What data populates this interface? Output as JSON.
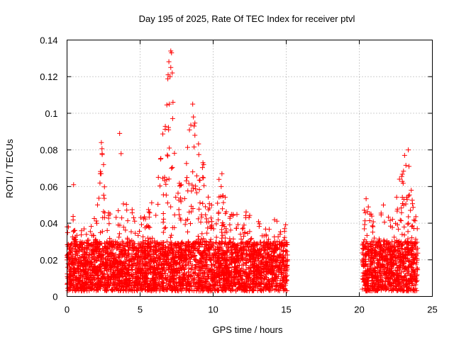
{
  "colors": {
    "series": "#ff0000",
    "grid": "#a0a0a0",
    "axis": "#000000",
    "background": "#ffffff"
  },
  "chart_data": {
    "type": "scatter",
    "marker": "plus",
    "title": "Day 195 of 2025, Rate Of TEC Index for receiver ptvl",
    "xlabel": "GPS time / hours",
    "ylabel": "ROTI / TECUs",
    "xlim": [
      0,
      25
    ],
    "ylim": [
      0,
      0.14
    ],
    "xticks": [
      0,
      5,
      10,
      15,
      20,
      25
    ],
    "yticks": [
      0,
      0.02,
      0.04,
      0.06,
      0.08,
      0.1,
      0.12,
      0.14
    ],
    "xtick_labels": [
      "0",
      "5",
      "10",
      "15",
      "20",
      "25"
    ],
    "ytick_labels": [
      "0",
      "0.02",
      "0.04",
      "0.06",
      "0.08",
      "0.1",
      "0.12",
      "0.14"
    ],
    "grid": true,
    "series": [
      {
        "name": "ROTI",
        "color": "#ff0000",
        "segments": [
          [
            0.0,
            15.1
          ],
          [
            20.2,
            24.0
          ]
        ],
        "baseline_range": [
          0.003,
          0.03
        ],
        "envelope": [
          [
            0.0,
            0.038
          ],
          [
            0.5,
            0.045
          ],
          [
            1.0,
            0.042
          ],
          [
            1.5,
            0.038
          ],
          [
            2.0,
            0.045
          ],
          [
            2.4,
            0.083
          ],
          [
            2.8,
            0.046
          ],
          [
            3.5,
            0.048
          ],
          [
            4.2,
            0.053
          ],
          [
            5.0,
            0.045
          ],
          [
            5.5,
            0.05
          ],
          [
            6.2,
            0.06
          ],
          [
            7.0,
            0.134
          ],
          [
            7.5,
            0.06
          ],
          [
            8.0,
            0.07
          ],
          [
            8.6,
            0.105
          ],
          [
            9.2,
            0.075
          ],
          [
            9.8,
            0.05
          ],
          [
            10.5,
            0.067
          ],
          [
            11.0,
            0.048
          ],
          [
            12.0,
            0.045
          ],
          [
            12.8,
            0.05
          ],
          [
            13.5,
            0.036
          ],
          [
            14.2,
            0.045
          ],
          [
            15.1,
            0.04
          ],
          [
            20.2,
            0.055
          ],
          [
            21.0,
            0.05
          ],
          [
            21.6,
            0.052
          ],
          [
            22.3,
            0.045
          ],
          [
            22.7,
            0.06
          ],
          [
            23.3,
            0.08
          ],
          [
            24.0,
            0.04
          ]
        ],
        "outliers": [
          [
            0.45,
            0.061
          ],
          [
            2.35,
            0.084
          ],
          [
            2.4,
            0.078
          ],
          [
            2.5,
            0.072
          ],
          [
            3.6,
            0.089
          ],
          [
            3.7,
            0.078
          ],
          [
            6.25,
            0.065
          ],
          [
            6.4,
            0.075
          ],
          [
            6.95,
            0.091
          ],
          [
            7.0,
            0.105
          ],
          [
            7.05,
            0.12
          ],
          [
            7.1,
            0.125
          ],
          [
            7.15,
            0.133
          ],
          [
            7.1,
            0.134
          ],
          [
            7.2,
            0.122
          ],
          [
            7.25,
            0.106
          ],
          [
            7.0,
            0.081
          ],
          [
            7.15,
            0.07
          ],
          [
            8.6,
            0.105
          ],
          [
            8.65,
            0.098
          ],
          [
            8.7,
            0.093
          ],
          [
            8.75,
            0.088
          ],
          [
            8.6,
            0.068
          ],
          [
            9.3,
            0.073
          ],
          [
            9.35,
            0.072
          ],
          [
            10.6,
            0.067
          ],
          [
            10.55,
            0.06
          ],
          [
            22.75,
            0.064
          ],
          [
            23.1,
            0.077
          ],
          [
            23.35,
            0.08
          ],
          [
            23.4,
            0.071
          ]
        ]
      }
    ]
  }
}
